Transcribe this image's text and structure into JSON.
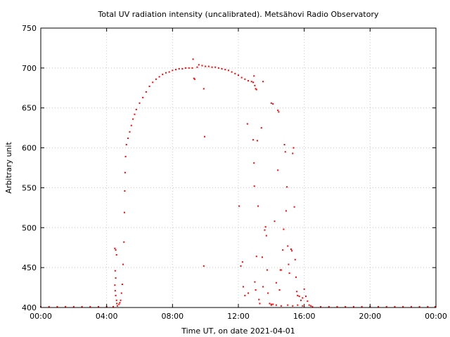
{
  "chart_data": {
    "type": "scatter",
    "title": "Total UV radiation intensity (uncalibrated). Metsähovi Radio Observatory",
    "xlabel": "Time UT, on date 2021-04-01",
    "ylabel": "Arbitrary unit",
    "x_unit": "hours UT",
    "xlim": [
      0,
      24
    ],
    "ylim": [
      400,
      750
    ],
    "x_ticks": [
      {
        "value": 0,
        "label": "00:00"
      },
      {
        "value": 4,
        "label": "04:00"
      },
      {
        "value": 8,
        "label": "08:00"
      },
      {
        "value": 12,
        "label": "12:00"
      },
      {
        "value": 16,
        "label": "16:00"
      },
      {
        "value": 20,
        "label": "20:00"
      },
      {
        "value": 24,
        "label": "00:00"
      }
    ],
    "y_ticks": [
      {
        "value": 400,
        "label": "400"
      },
      {
        "value": 450,
        "label": "450"
      },
      {
        "value": 500,
        "label": "500"
      },
      {
        "value": 550,
        "label": "550"
      },
      {
        "value": 600,
        "label": "600"
      },
      {
        "value": 650,
        "label": "650"
      },
      {
        "value": 700,
        "label": "700"
      },
      {
        "value": 750,
        "label": "750"
      }
    ],
    "grid": true,
    "series_color": "#ff0000",
    "series": [
      {
        "points": [
          [
            0.0,
            401
          ],
          [
            0.5,
            401
          ],
          [
            1.0,
            401
          ],
          [
            1.5,
            401
          ],
          [
            2.0,
            401
          ],
          [
            2.5,
            401
          ],
          [
            3.0,
            401
          ],
          [
            3.5,
            401
          ],
          [
            4.0,
            401
          ],
          [
            4.4,
            401
          ],
          [
            4.5,
            474
          ],
          [
            4.55,
            472
          ],
          [
            4.6,
            466
          ],
          [
            4.52,
            446
          ],
          [
            4.55,
            437
          ],
          [
            4.5,
            428
          ],
          [
            4.52,
            421
          ],
          [
            4.55,
            415
          ],
          [
            4.6,
            409
          ],
          [
            4.62,
            405
          ],
          [
            4.65,
            402
          ],
          [
            4.75,
            404
          ],
          [
            4.8,
            406
          ],
          [
            4.85,
            409
          ],
          [
            4.9,
            418
          ],
          [
            4.95,
            429
          ],
          [
            5.0,
            454
          ],
          [
            5.05,
            482
          ],
          [
            5.08,
            519
          ],
          [
            5.1,
            546
          ],
          [
            5.12,
            569
          ],
          [
            5.15,
            589
          ],
          [
            5.2,
            604
          ],
          [
            5.3,
            612
          ],
          [
            5.4,
            620
          ],
          [
            5.5,
            628
          ],
          [
            5.6,
            636
          ],
          [
            5.7,
            642
          ],
          [
            5.8,
            648
          ],
          [
            6.0,
            656
          ],
          [
            6.2,
            663
          ],
          [
            6.4,
            670
          ],
          [
            6.6,
            677
          ],
          [
            6.8,
            682
          ],
          [
            7.0,
            686
          ],
          [
            7.2,
            689
          ],
          [
            7.4,
            692
          ],
          [
            7.6,
            694
          ],
          [
            7.8,
            695
          ],
          [
            8.0,
            697
          ],
          [
            8.2,
            698
          ],
          [
            8.4,
            699
          ],
          [
            8.6,
            699
          ],
          [
            8.8,
            700
          ],
          [
            9.0,
            700
          ],
          [
            9.2,
            700
          ],
          [
            9.25,
            711
          ],
          [
            9.3,
            687
          ],
          [
            9.35,
            686
          ],
          [
            9.5,
            701
          ],
          [
            9.6,
            704
          ],
          [
            9.8,
            703
          ],
          [
            9.9,
            674
          ],
          [
            9.95,
            614
          ],
          [
            9.9,
            452
          ],
          [
            10.0,
            702
          ],
          [
            10.2,
            702
          ],
          [
            10.4,
            701
          ],
          [
            10.6,
            701
          ],
          [
            10.8,
            700
          ],
          [
            11.0,
            699
          ],
          [
            11.2,
            698
          ],
          [
            11.4,
            697
          ],
          [
            11.6,
            695
          ],
          [
            11.8,
            693
          ],
          [
            12.0,
            691
          ],
          [
            12.2,
            688
          ],
          [
            12.4,
            686
          ],
          [
            12.6,
            684
          ],
          [
            12.8,
            683
          ],
          [
            12.9,
            682
          ],
          [
            12.95,
            690
          ],
          [
            13.0,
            678
          ],
          [
            13.05,
            674
          ],
          [
            13.1,
            673
          ],
          [
            13.5,
            683
          ],
          [
            14.0,
            656
          ],
          [
            14.1,
            655
          ],
          [
            14.4,
            647
          ],
          [
            14.45,
            645
          ],
          [
            12.05,
            527
          ],
          [
            12.15,
            452
          ],
          [
            12.25,
            457
          ],
          [
            12.3,
            426
          ],
          [
            12.4,
            415
          ],
          [
            12.55,
            630
          ],
          [
            12.6,
            418
          ],
          [
            12.9,
            610
          ],
          [
            12.95,
            581
          ],
          [
            12.97,
            552
          ],
          [
            13.0,
            432
          ],
          [
            13.05,
            422
          ],
          [
            13.1,
            464
          ],
          [
            13.15,
            609
          ],
          [
            13.2,
            527
          ],
          [
            13.25,
            410
          ],
          [
            13.3,
            405
          ],
          [
            13.4,
            625
          ],
          [
            13.45,
            463
          ],
          [
            13.5,
            426
          ],
          [
            13.6,
            497
          ],
          [
            13.65,
            501
          ],
          [
            13.7,
            490
          ],
          [
            13.75,
            447
          ],
          [
            13.8,
            418
          ],
          [
            13.9,
            405
          ],
          [
            14.0,
            404
          ],
          [
            14.1,
            404
          ],
          [
            14.2,
            508
          ],
          [
            14.3,
            431
          ],
          [
            14.4,
            572
          ],
          [
            14.5,
            422
          ],
          [
            14.55,
            447
          ],
          [
            14.6,
            447
          ],
          [
            14.7,
            472
          ],
          [
            14.75,
            498
          ],
          [
            14.8,
            604
          ],
          [
            14.85,
            595
          ],
          [
            14.9,
            521
          ],
          [
            14.95,
            551
          ],
          [
            15.0,
            477
          ],
          [
            15.05,
            454
          ],
          [
            15.1,
            443
          ],
          [
            15.2,
            473
          ],
          [
            15.25,
            471
          ],
          [
            15.3,
            593
          ],
          [
            15.35,
            600
          ],
          [
            15.4,
            526
          ],
          [
            15.45,
            460
          ],
          [
            15.5,
            438
          ],
          [
            15.55,
            420
          ],
          [
            15.6,
            415
          ],
          [
            15.7,
            414
          ],
          [
            15.8,
            409
          ],
          [
            15.9,
            412
          ],
          [
            16.0,
            423
          ],
          [
            16.1,
            414
          ],
          [
            16.2,
            408
          ],
          [
            16.3,
            403
          ],
          [
            16.4,
            402
          ],
          [
            14.0,
            403
          ],
          [
            14.3,
            403
          ],
          [
            14.6,
            402
          ],
          [
            15.0,
            403
          ],
          [
            15.3,
            402
          ],
          [
            15.6,
            403
          ],
          [
            15.9,
            402
          ],
          [
            16.5,
            401
          ],
          [
            17.0,
            401
          ],
          [
            17.5,
            401
          ],
          [
            18.0,
            401
          ],
          [
            18.5,
            401
          ],
          [
            19.0,
            401
          ],
          [
            19.5,
            401
          ],
          [
            20.0,
            401
          ],
          [
            20.5,
            401
          ],
          [
            21.0,
            401
          ],
          [
            21.5,
            401
          ],
          [
            22.0,
            401
          ],
          [
            22.5,
            401
          ],
          [
            23.0,
            401
          ],
          [
            23.5,
            401
          ],
          [
            23.95,
            401
          ]
        ]
      }
    ]
  }
}
